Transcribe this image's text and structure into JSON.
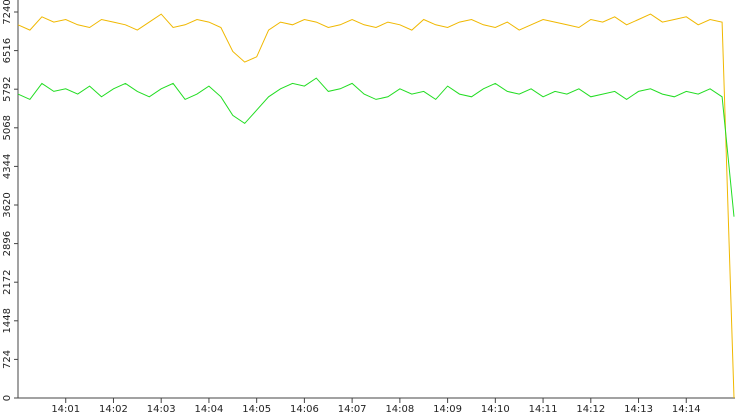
{
  "chart_data": {
    "type": "line",
    "x": [
      0,
      0.25,
      0.5,
      0.75,
      1,
      1.25,
      1.5,
      1.75,
      2,
      2.25,
      2.5,
      2.75,
      3,
      3.25,
      3.5,
      3.75,
      4,
      4.25,
      4.5,
      4.75,
      5,
      5.25,
      5.5,
      5.75,
      6,
      6.25,
      6.5,
      6.75,
      7,
      7.25,
      7.5,
      7.75,
      8,
      8.25,
      8.5,
      8.75,
      9,
      9.25,
      9.5,
      9.75,
      10,
      10.25,
      10.5,
      10.75,
      11,
      11.25,
      11.5,
      11.75,
      12,
      12.25,
      12.5,
      12.75,
      13,
      13.25,
      13.5,
      13.75,
      14,
      14.25,
      14.5,
      14.75,
      15
    ],
    "series": [
      {
        "color": "#f0b800",
        "values": [
          7000,
          6900,
          7150,
          7050,
          7100,
          7000,
          6950,
          7100,
          7050,
          7000,
          6900,
          7050,
          7200,
          6950,
          7000,
          7100,
          7050,
          6950,
          6500,
          6300,
          6400,
          6900,
          7050,
          7000,
          7100,
          7050,
          6950,
          7000,
          7100,
          7000,
          6950,
          7050,
          7000,
          6900,
          7100,
          7000,
          6950,
          7050,
          7100,
          7000,
          6950,
          7050,
          6900,
          7000,
          7100,
          7050,
          7000,
          6950,
          7100,
          7050,
          7150,
          7000,
          7100,
          7200,
          7050,
          7100,
          7150,
          7000,
          7100,
          7050,
          0
        ]
      },
      {
        "color": "#22dd22",
        "values": [
          5700,
          5600,
          5900,
          5750,
          5800,
          5700,
          5850,
          5650,
          5800,
          5900,
          5750,
          5650,
          5800,
          5900,
          5600,
          5700,
          5850,
          5650,
          5300,
          5150,
          5400,
          5650,
          5800,
          5900,
          5850,
          6000,
          5750,
          5800,
          5900,
          5700,
          5600,
          5650,
          5800,
          5700,
          5750,
          5600,
          5850,
          5700,
          5650,
          5800,
          5900,
          5750,
          5700,
          5800,
          5650,
          5750,
          5700,
          5800,
          5650,
          5700,
          5750,
          5600,
          5750,
          5800,
          5700,
          5650,
          5750,
          5700,
          5800,
          5650,
          3400
        ]
      }
    ],
    "xlim": [
      0,
      15
    ],
    "xticks": [
      {
        "value": 1,
        "label": "14:01"
      },
      {
        "value": 2,
        "label": "14:02"
      },
      {
        "value": 3,
        "label": "14:03"
      },
      {
        "value": 4,
        "label": "14:04"
      },
      {
        "value": 5,
        "label": "14:05"
      },
      {
        "value": 6,
        "label": "14:06"
      },
      {
        "value": 7,
        "label": "14:07"
      },
      {
        "value": 8,
        "label": "14:08"
      },
      {
        "value": 9,
        "label": "14:09"
      },
      {
        "value": 10,
        "label": "14:10"
      },
      {
        "value": 11,
        "label": "14:11"
      },
      {
        "value": 12,
        "label": "14:12"
      },
      {
        "value": 13,
        "label": "14:13"
      },
      {
        "value": 14,
        "label": "14:14"
      }
    ],
    "ylim": [
      0,
      7240
    ],
    "yticks": [
      0,
      724,
      1448,
      2172,
      2896,
      3620,
      4344,
      5068,
      5792,
      6516,
      7240
    ]
  }
}
